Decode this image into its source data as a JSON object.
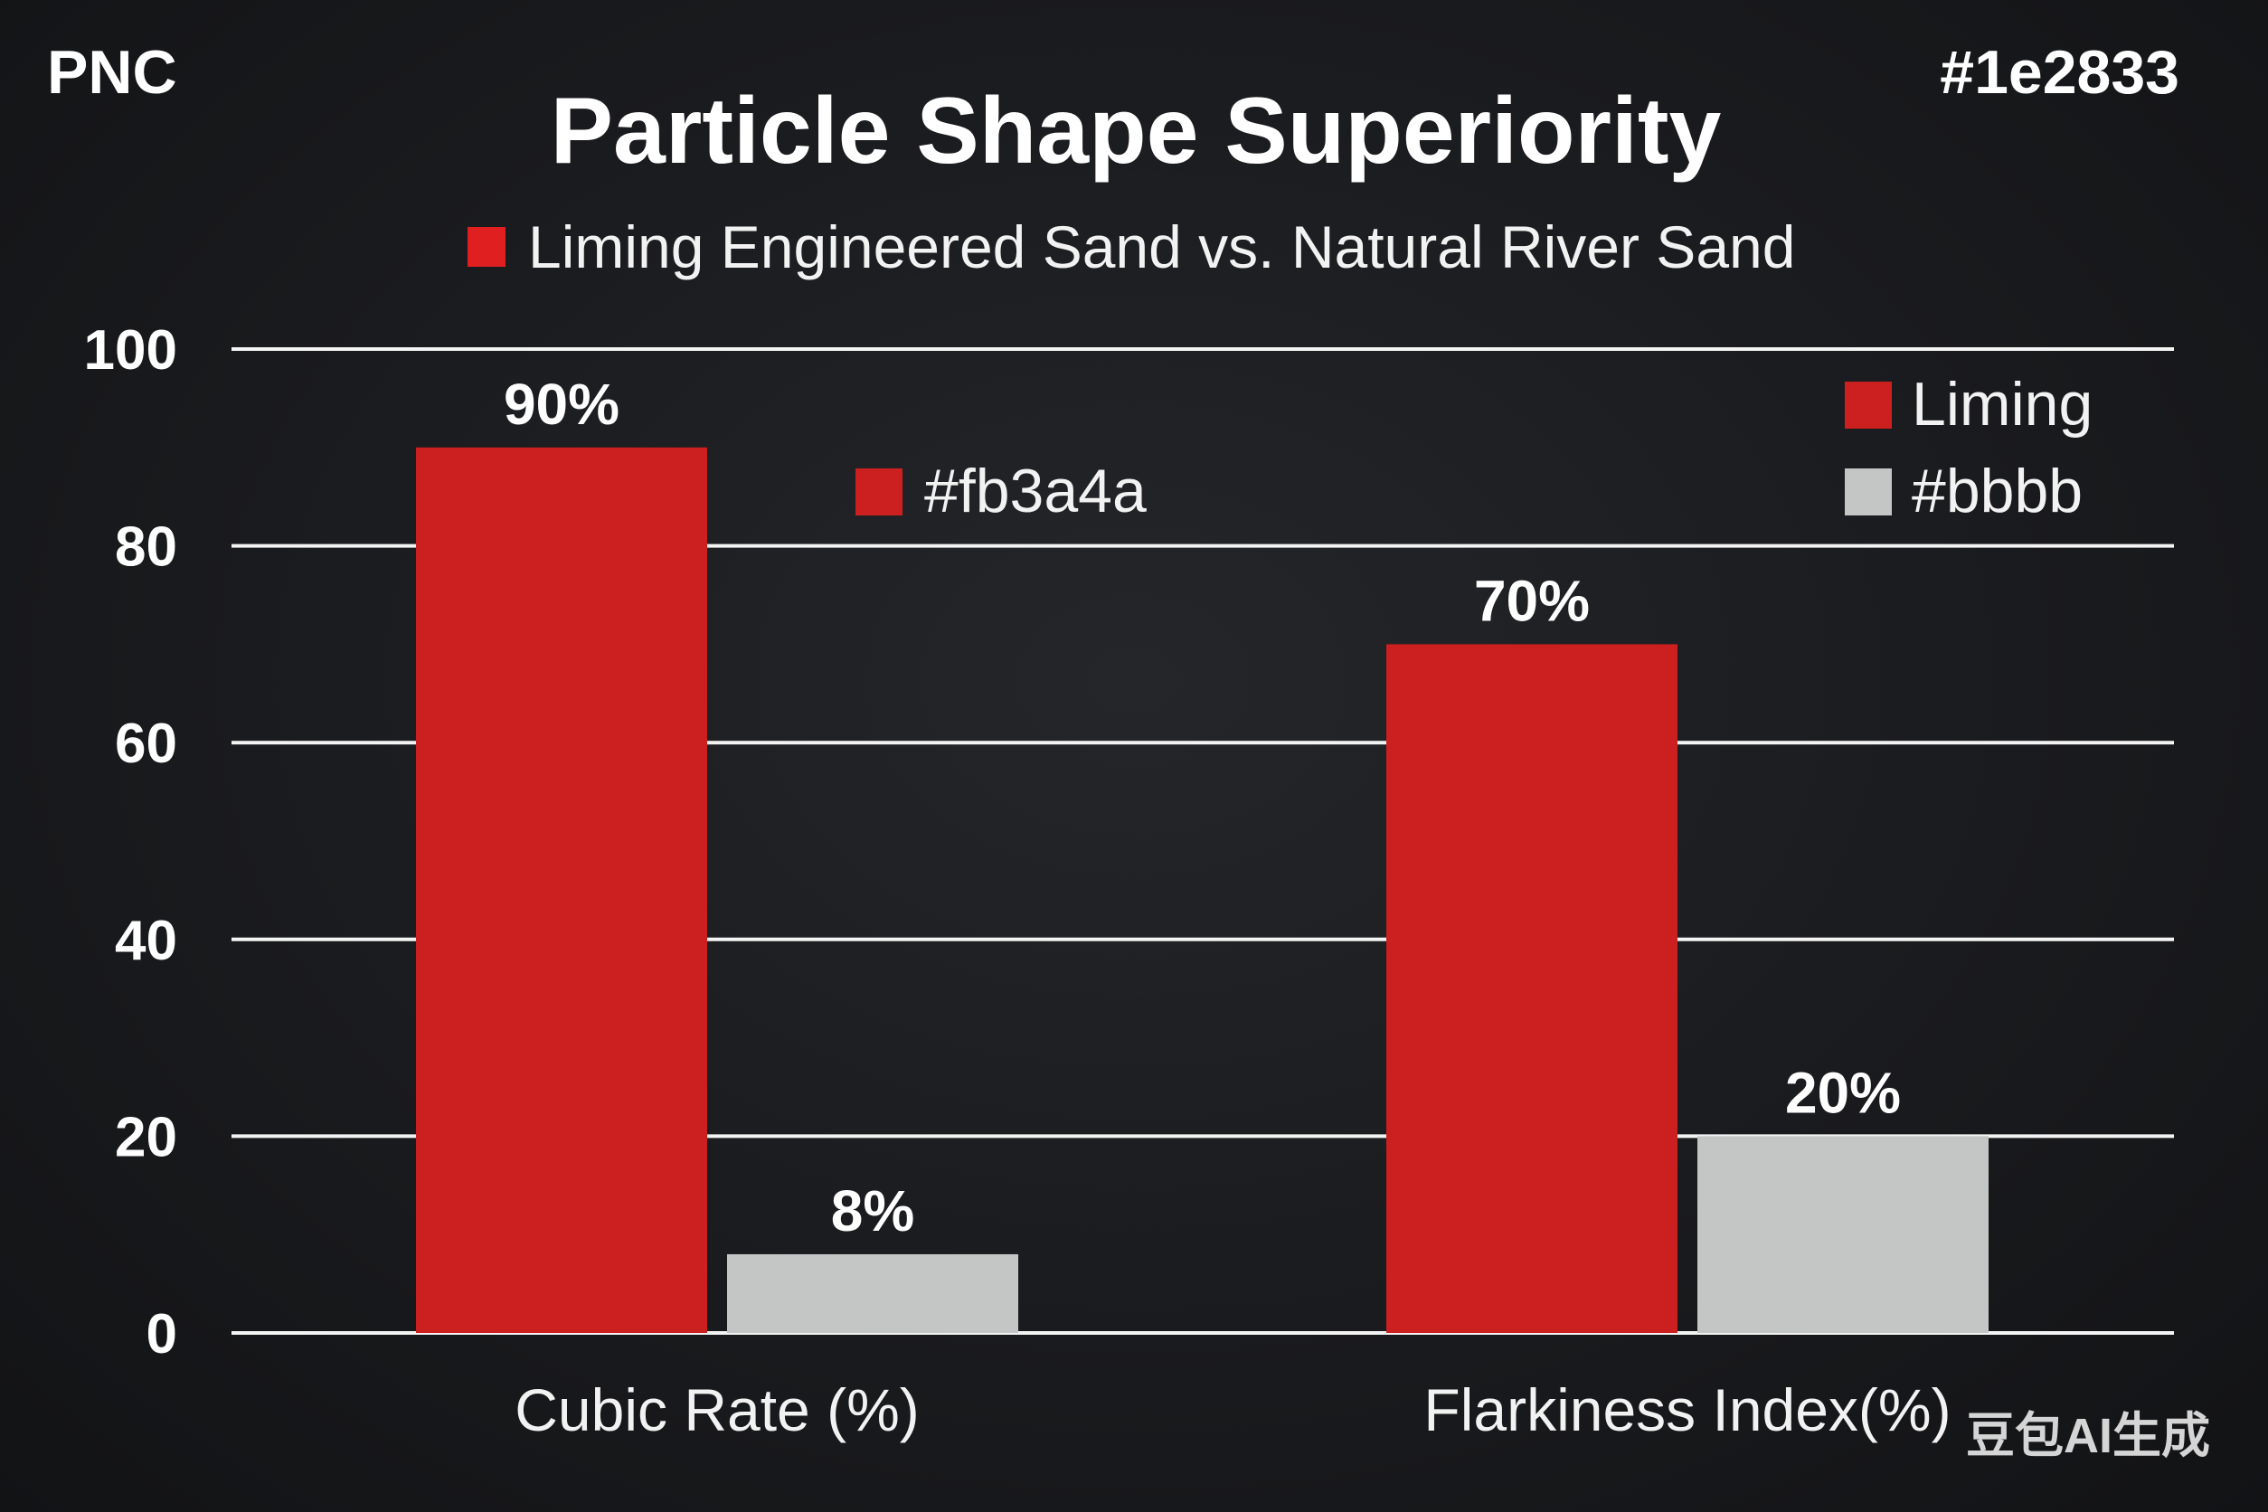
{
  "corner_left": "PNC",
  "corner_right": "#1e2833",
  "watermark": "豆包AI生成",
  "chart_data": {
    "type": "bar",
    "title": "Particle Shape Superiority",
    "subtitle": "Liming Engineered Sand vs. Natural River Sand",
    "categories": [
      "Cubic Rate (%)",
      "Flarkiness Index(%)"
    ],
    "series": [
      {
        "name": "Liming",
        "color": "#cc1f1f",
        "values": [
          90,
          70
        ],
        "labels": [
          "90%",
          "70%"
        ]
      },
      {
        "name": "#bbbb",
        "color": "#c4c6c6",
        "values": [
          8,
          20
        ],
        "labels": [
          "8%",
          "20%"
        ]
      }
    ],
    "extra_legend": {
      "label": "#fb3a4a",
      "color": "#cc1f1f"
    },
    "subtitle_marker_color": "#e02020",
    "ylim": [
      0,
      100
    ],
    "yticks": [
      0,
      20,
      40,
      60,
      80,
      100
    ],
    "grid": true,
    "legend_position": "top-right",
    "xlabel": "",
    "ylabel": ""
  }
}
